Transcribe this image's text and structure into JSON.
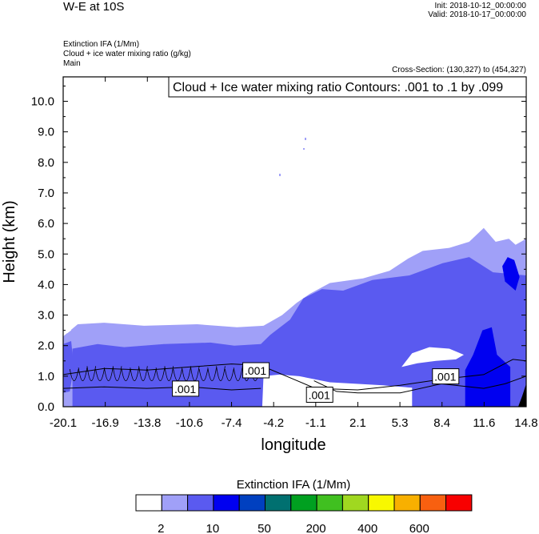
{
  "header": {
    "title": "W-E at 10S",
    "init": "Init: 2018-10-12_00:00:00",
    "valid": "Valid: 2018-10-17_00:00:00",
    "field1": "Extinction IFA   (1/Mm)",
    "field2": "Cloud + ice water mixing ratio   (g/kg)",
    "field3": "Main",
    "cross_section": "Cross-Section: (130,327) to (454,327)"
  },
  "chart_data": {
    "type": "heatmap",
    "title": "W-E at 10S",
    "xlabel": "longitude",
    "ylabel": "Height (km)",
    "xlim": [
      -20.1,
      14.8
    ],
    "ylim": [
      0.0,
      10.8
    ],
    "xticks": [
      "-20.1",
      "-16.9",
      "-13.8",
      "-10.6",
      "-7.4",
      "-4.2",
      "-1.1",
      "2.1",
      "5.3",
      "8.4",
      "11.6",
      "14.8"
    ],
    "yticks": [
      "0.0",
      "1.0",
      "2.0",
      "3.0",
      "4.0",
      "5.0",
      "6.0",
      "7.0",
      "8.0",
      "9.0",
      "10.0"
    ],
    "contour_info": "Cloud + Ice water mixing ratio Contours: .001 to .1 by .099",
    "contour_labels": [
      ".001",
      ".001",
      ".001",
      ".001"
    ],
    "colorbar": {
      "title": "Extinction IFA  (1/Mm)",
      "colors": [
        "#ffffff",
        "#a0a0f8",
        "#5a5af0",
        "#0000f0",
        "#0040c0",
        "#007070",
        "#00a020",
        "#40c020",
        "#a0d820",
        "#f8f800",
        "#f8b000",
        "#f86010",
        "#f80000"
      ],
      "tick_labels": [
        "2",
        "10",
        "50",
        "200",
        "400",
        "600"
      ]
    },
    "filled_regions": [
      {
        "level": "2-10",
        "color": "#a0a0f8",
        "points": [
          [
            -20.1,
            0.0
          ],
          [
            -20.1,
            2.3
          ],
          [
            -19.0,
            2.7
          ],
          [
            -17.0,
            2.75
          ],
          [
            -14.0,
            2.65
          ],
          [
            -10.0,
            2.7
          ],
          [
            -7.0,
            2.6
          ],
          [
            -5.0,
            2.65
          ],
          [
            -3.6,
            3.0
          ],
          [
            -2.5,
            3.4
          ],
          [
            -1.5,
            3.7
          ],
          [
            0.0,
            4.05
          ],
          [
            2.5,
            4.2
          ],
          [
            4.5,
            4.45
          ],
          [
            5.9,
            4.85
          ],
          [
            7.0,
            5.1
          ],
          [
            9.0,
            5.2
          ],
          [
            10.5,
            5.4
          ],
          [
            11.6,
            5.85
          ],
          [
            12.5,
            5.4
          ],
          [
            13.5,
            5.5
          ],
          [
            14.0,
            5.3
          ],
          [
            14.8,
            5.5
          ],
          [
            14.8,
            0.0
          ]
        ]
      },
      {
        "level": "10-50",
        "color": "#5a5af0",
        "points": [
          [
            -19.4,
            0.0
          ],
          [
            -19.4,
            1.9
          ],
          [
            -17.5,
            2.05
          ],
          [
            -15.5,
            1.95
          ],
          [
            -12.5,
            2.05
          ],
          [
            -9.0,
            2.1
          ],
          [
            -7.2,
            2.0
          ],
          [
            -5.2,
            2.05
          ],
          [
            -4.5,
            2.35
          ],
          [
            -3.0,
            2.85
          ],
          [
            -2.0,
            3.55
          ],
          [
            -0.6,
            3.85
          ],
          [
            1.0,
            3.8
          ],
          [
            3.2,
            4.15
          ],
          [
            6.0,
            4.3
          ],
          [
            8.5,
            4.7
          ],
          [
            10.5,
            4.9
          ],
          [
            12.3,
            4.4
          ],
          [
            14.8,
            4.3
          ],
          [
            14.8,
            0.0
          ]
        ]
      },
      {
        "level": "10-50 (outer)",
        "color": "#5a5af0",
        "points": [
          [
            -20.1,
            0.45
          ],
          [
            -20.1,
            2.05
          ],
          [
            -19.5,
            2.15
          ],
          [
            -19.3,
            1.3
          ],
          [
            -19.6,
            0.5
          ]
        ]
      },
      {
        "level": "50-200",
        "color": "#0000f0",
        "points": [
          [
            10.2,
            0.0
          ],
          [
            10.2,
            1.2
          ],
          [
            10.8,
            1.7
          ],
          [
            11.5,
            2.5
          ],
          [
            12.2,
            2.6
          ],
          [
            12.6,
            1.7
          ],
          [
            13.6,
            1.3
          ],
          [
            13.6,
            0.0
          ]
        ]
      },
      {
        "level": "50-200 (upper)",
        "color": "#0000f0",
        "points": [
          [
            13.0,
            4.6
          ],
          [
            13.2,
            4.1
          ],
          [
            14.0,
            3.8
          ],
          [
            14.3,
            4.25
          ],
          [
            13.9,
            4.8
          ],
          [
            13.4,
            4.9
          ]
        ]
      },
      {
        "level": "<2",
        "color": "#ffffff",
        "points": [
          [
            -5.1,
            0.0
          ],
          [
            -5.0,
            1.0
          ],
          [
            -3.8,
            1.05
          ],
          [
            -2.3,
            1.0
          ],
          [
            0.0,
            0.8
          ],
          [
            4.0,
            0.7
          ],
          [
            6.2,
            0.62
          ],
          [
            6.2,
            0.0
          ]
        ]
      },
      {
        "level": "<2 (band)",
        "color": "#ffffff",
        "points": [
          [
            5.4,
            1.3
          ],
          [
            6.2,
            1.75
          ],
          [
            7.5,
            1.95
          ],
          [
            9.0,
            1.9
          ],
          [
            10.1,
            1.7
          ],
          [
            9.5,
            1.55
          ],
          [
            8.0,
            1.5
          ],
          [
            6.6,
            1.42
          ]
        ]
      },
      {
        "level": "<2 (specks)",
        "color": "#ffffff",
        "points": [
          [
            -19.95,
            2.62
          ],
          [
            -19.7,
            2.75
          ],
          [
            -19.5,
            2.5
          ],
          [
            -19.8,
            2.4
          ]
        ]
      },
      {
        "level": "terrain",
        "color": "#000000",
        "points": [
          [
            14.2,
            0.0
          ],
          [
            14.5,
            0.35
          ],
          [
            14.8,
            0.75
          ],
          [
            14.8,
            0.0
          ]
        ]
      }
    ],
    "contours": [
      {
        "level": ".001",
        "points": [
          [
            -20.1,
            1.05
          ],
          [
            -17.0,
            1.25
          ],
          [
            -13.8,
            1.2
          ],
          [
            -10.6,
            1.3
          ],
          [
            -7.4,
            1.4
          ],
          [
            -5.2,
            1.35
          ]
        ]
      },
      {
        "level": ".001",
        "points": [
          [
            -20.1,
            0.6
          ],
          [
            -17.0,
            0.65
          ],
          [
            -13.8,
            0.6
          ],
          [
            -10.6,
            0.65
          ],
          [
            -7.4,
            0.55
          ],
          [
            -5.2,
            0.6
          ]
        ]
      },
      {
        "level": ".001",
        "points": [
          [
            -5.2,
            1.35
          ],
          [
            -3.0,
            0.95
          ],
          [
            -1.1,
            0.6
          ],
          [
            2.1,
            0.55
          ],
          [
            5.3,
            0.7
          ],
          [
            8.4,
            0.9
          ],
          [
            11.6,
            1.05
          ],
          [
            13.8,
            1.55
          ],
          [
            14.8,
            1.5
          ]
        ]
      },
      {
        "level": ".001",
        "points": [
          [
            -1.2,
            0.85
          ],
          [
            0.5,
            0.5
          ],
          [
            2.1,
            0.45
          ],
          [
            5.3,
            0.45
          ],
          [
            8.4,
            0.75
          ],
          [
            11.6,
            0.6
          ],
          [
            13.2,
            0.75
          ],
          [
            14.8,
            1.0
          ]
        ]
      }
    ]
  }
}
